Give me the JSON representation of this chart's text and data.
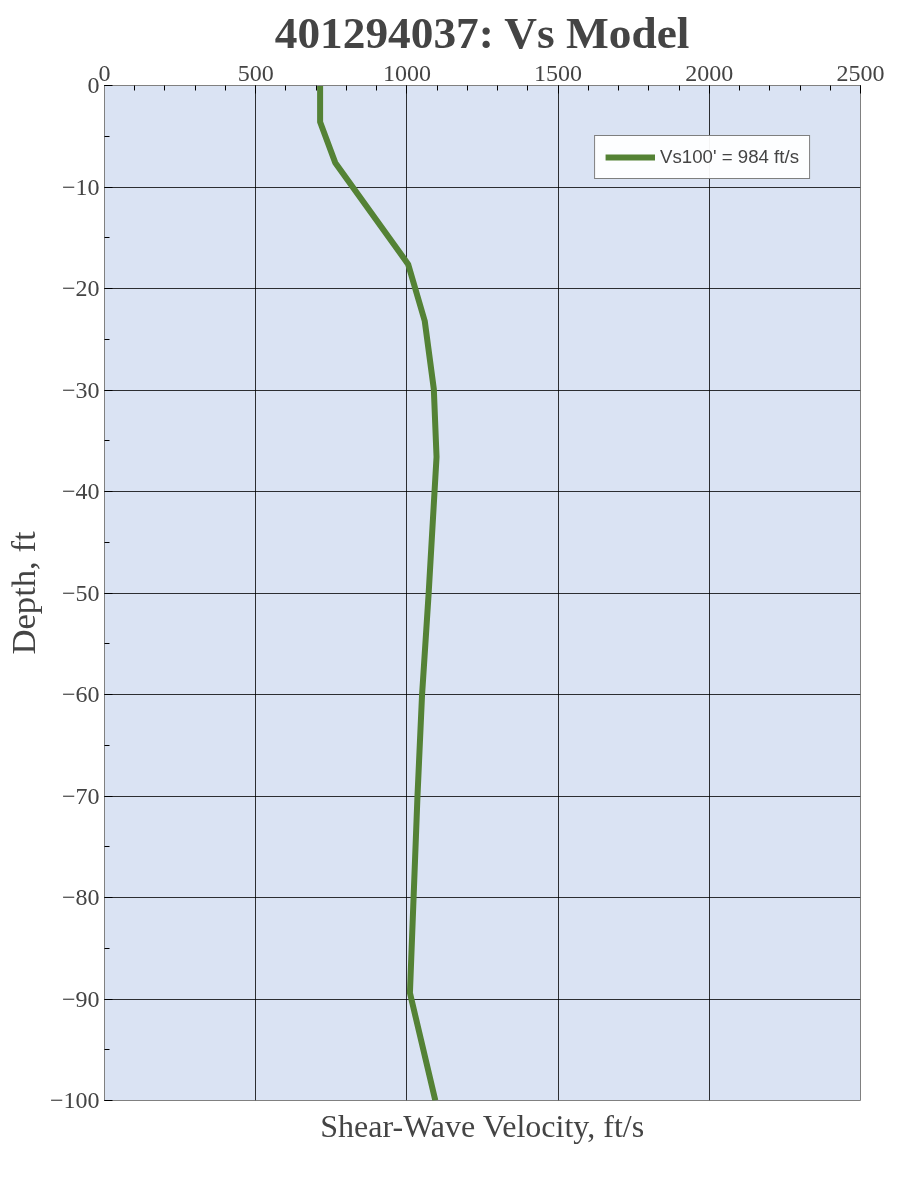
{
  "chart_data": {
    "type": "line",
    "title": "401294037: Vs Model",
    "xlabel": "Shear-Wave Velocity, ft/s",
    "ylabel": "Depth, ft",
    "series": [
      {
        "name": "Vs100' = 984 ft/s",
        "color": "#548235",
        "x": [
          713,
          713,
          763,
          1004,
          1059,
          1089,
          1098,
          1072,
          1050,
          1035,
          1010,
          1094
        ],
        "values": [
          0,
          -3.6,
          -7.6,
          -17.6,
          -23.2,
          -29.9,
          -36.6,
          -50,
          -60.1,
          -70,
          -89.4,
          -100
        ]
      }
    ],
    "xlim": [
      0,
      2500
    ],
    "xticks": [
      0,
      500,
      1000,
      1500,
      2000,
      2500
    ],
    "ylim": [
      -100,
      0
    ],
    "yticks": [
      0,
      -10,
      -20,
      -30,
      -40,
      -50,
      -60,
      -70,
      -80,
      -90,
      -100
    ],
    "grid": true,
    "legend": "top right",
    "marker": "none",
    "line_style": "solid"
  }
}
